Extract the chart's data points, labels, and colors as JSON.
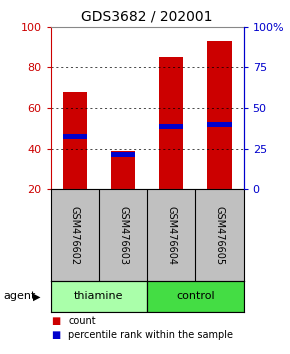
{
  "title": "GDS3682 / 202001",
  "samples": [
    "GSM476602",
    "GSM476603",
    "GSM476604",
    "GSM476605"
  ],
  "bar_bottom": 20,
  "bar_tops": [
    68,
    39,
    85,
    93
  ],
  "blue_markers": [
    46,
    37,
    51,
    52
  ],
  "ylim_left": [
    20,
    100
  ],
  "ylim_right": [
    0,
    100
  ],
  "yticks_left": [
    20,
    40,
    60,
    80,
    100
  ],
  "yticks_right": [
    0,
    25,
    50,
    75,
    100
  ],
  "yticklabels_right": [
    "0",
    "25",
    "50",
    "75",
    "100%"
  ],
  "left_tick_color": "#cc0000",
  "right_tick_color": "#0000cc",
  "bar_color": "#cc0000",
  "marker_color": "#0000cc",
  "bg_color": "#ffffff",
  "plot_bg": "#ffffff",
  "label_area_color": "#c0c0c0",
  "thiamine_color": "#aaffaa",
  "control_color": "#44dd44",
  "legend_count_color": "#cc0000",
  "legend_pct_color": "#0000cc",
  "agent_label": "agent",
  "legend_items": [
    "count",
    "percentile rank within the sample"
  ],
  "group_defs": [
    [
      "thiamine",
      0,
      1
    ],
    [
      "control",
      2,
      3
    ]
  ]
}
